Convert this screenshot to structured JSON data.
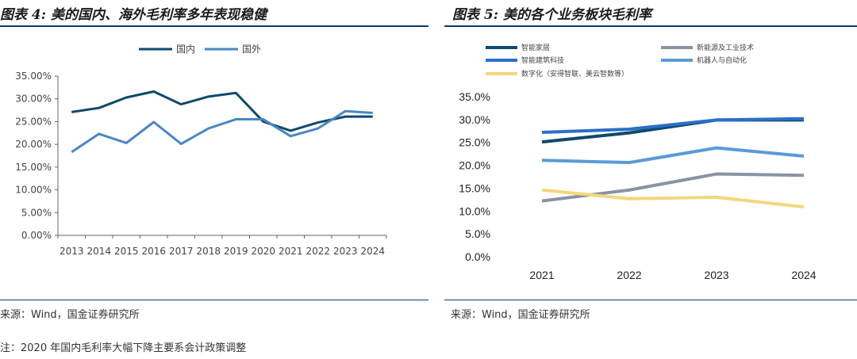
{
  "left": {
    "title": "图表 4: 美的国内、海外毛利率多年表现稳健",
    "source": "来源：Wind，国金证券研究所",
    "note": "注：2020 年国内毛利率大幅下降主要系会计政策调整",
    "chart_data": {
      "type": "line",
      "title": "",
      "xlabel": "",
      "ylabel": "",
      "ylim": [
        0,
        35
      ],
      "yticks": [
        "0.00%",
        "5.00%",
        "10.00%",
        "15.00%",
        "20.00%",
        "25.00%",
        "30.00%",
        "35.00%"
      ],
      "x": [
        "2013",
        "2014",
        "2015",
        "2016",
        "2017",
        "2018",
        "2019",
        "2020",
        "2021",
        "2022",
        "2023",
        "2024"
      ],
      "legend_position": "top-center",
      "grid": false,
      "series": [
        {
          "name": "国内",
          "color": "#0e4a6b",
          "values": [
            27.1,
            28.0,
            30.3,
            31.6,
            28.8,
            30.5,
            31.3,
            25.0,
            23.0,
            24.8,
            26.1,
            26.1
          ]
        },
        {
          "name": "国外",
          "color": "#4a86c5",
          "values": [
            18.3,
            22.3,
            20.3,
            24.9,
            20.1,
            23.5,
            25.5,
            25.5,
            21.8,
            23.5,
            27.3,
            26.9
          ]
        }
      ]
    }
  },
  "right": {
    "title": "图表 5: 美的各个业务板块毛利率",
    "source": "来源：Wind，国金证券研究所",
    "chart_data": {
      "type": "line",
      "title": "",
      "xlabel": "",
      "ylabel": "",
      "ylim": [
        0,
        35
      ],
      "yticks": [
        "0.0%",
        "5.0%",
        "10.0%",
        "15.0%",
        "20.0%",
        "25.0%",
        "30.0%",
        "35.0%"
      ],
      "x": [
        "2021",
        "2022",
        "2023",
        "2024"
      ],
      "legend_position": "top",
      "grid": false,
      "series": [
        {
          "name": "智能家居",
          "color": "#0e4a6b",
          "values": [
            25.1,
            27.1,
            29.9,
            29.9
          ]
        },
        {
          "name": "新能源及工业技术",
          "color": "#8a93a3",
          "values": [
            12.2,
            14.6,
            18.1,
            17.8
          ]
        },
        {
          "name": "智能建筑科技",
          "color": "#2a6fc9",
          "values": [
            27.2,
            27.9,
            29.9,
            30.2
          ]
        },
        {
          "name": "机器人与自动化",
          "color": "#5b9bd5",
          "values": [
            21.1,
            20.6,
            23.8,
            22.0
          ]
        },
        {
          "name": "数字化（安得智联、美云智数等）",
          "color": "#f3d77a",
          "values": [
            14.6,
            12.7,
            13.0,
            10.9
          ]
        }
      ]
    }
  }
}
